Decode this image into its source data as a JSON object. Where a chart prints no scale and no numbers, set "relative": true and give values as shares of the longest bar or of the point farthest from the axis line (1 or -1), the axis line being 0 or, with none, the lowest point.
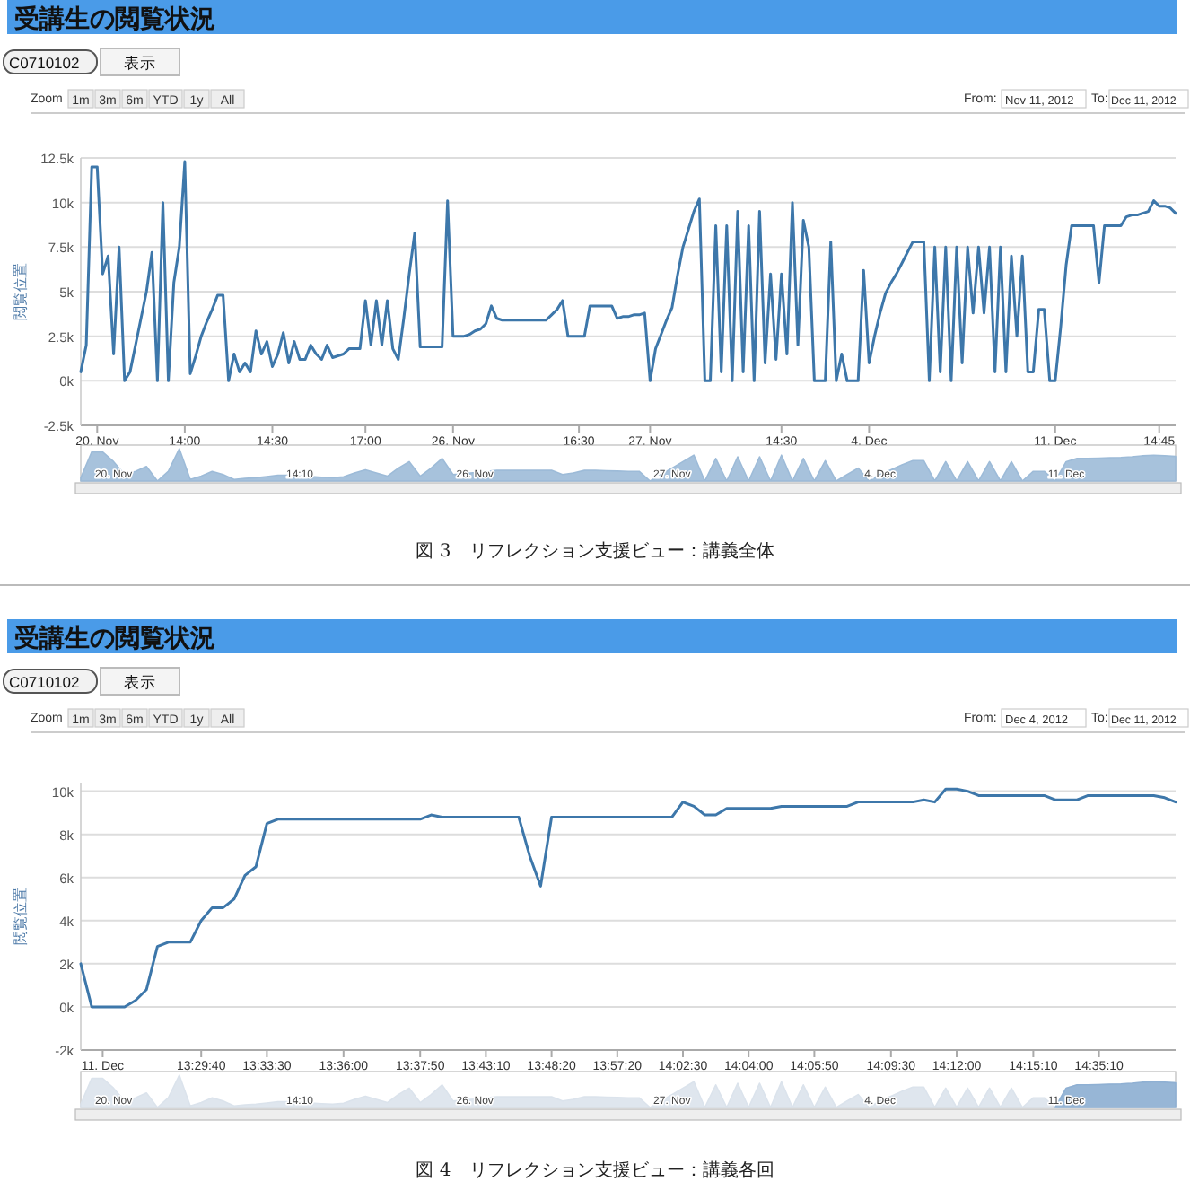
{
  "chart_data": [
    {
      "type": "line",
      "title": "受講生の閲覧状況",
      "ylabel": "閲覧位置",
      "annotations": [
        "C0710102",
        "表示",
        "Zoom",
        "1m",
        "3m",
        "6m",
        "YTD",
        "1y",
        "All",
        "From:",
        "Nov 11, 2012",
        "To:",
        "Dec 11, 2012"
      ],
      "categories": [
        null,
        null,
        null,
        "20. Nov",
        null,
        null,
        null,
        null,
        null,
        null,
        null,
        null,
        null,
        null,
        null,
        null,
        null,
        null,
        null,
        "14:00",
        null,
        null,
        null,
        null,
        null,
        null,
        null,
        null,
        null,
        null,
        null,
        null,
        null,
        null,
        null,
        "14:30",
        null,
        null,
        null,
        null,
        null,
        null,
        null,
        null,
        null,
        null,
        null,
        null,
        null,
        null,
        null,
        null,
        "17:00",
        null,
        null,
        null,
        null,
        null,
        null,
        null,
        null,
        null,
        null,
        null,
        null,
        null,
        null,
        null,
        "26. Nov",
        null,
        null,
        null,
        null,
        null,
        null,
        null,
        null,
        null,
        null,
        null,
        null,
        null,
        null,
        null,
        null,
        null,
        null,
        null,
        null,
        null,
        null,
        "16:30",
        null,
        null,
        null,
        null,
        null,
        null,
        null,
        null,
        null,
        null,
        null,
        null,
        "27. Nov",
        null,
        null,
        null,
        null,
        null,
        null,
        null,
        null,
        null,
        null,
        null,
        null,
        null,
        null,
        null,
        null,
        null,
        null,
        null,
        null,
        null,
        null,
        null,
        "14:30",
        null,
        null,
        null,
        null,
        null,
        null,
        null,
        null,
        null,
        null,
        null,
        null,
        null,
        null,
        null,
        "4. Dec",
        null,
        null,
        null,
        null,
        null,
        null,
        null,
        null,
        null,
        null,
        null,
        null,
        null,
        null,
        null,
        null,
        null,
        null,
        null,
        null,
        null,
        null,
        null,
        null,
        null,
        null,
        null,
        null,
        null,
        null,
        null,
        null,
        null,
        "11. Dec",
        null,
        null,
        null,
        null,
        null,
        null,
        null,
        null,
        null,
        null,
        null,
        null,
        null,
        null,
        null,
        null,
        null,
        null,
        "14:45",
        null,
        null,
        null
      ],
      "series": [
        {
          "color": "#3d77aa",
          "values": [
            500,
            2000,
            12000,
            12000,
            6000,
            7000,
            1500,
            7500,
            0,
            500,
            2000,
            3500,
            5000,
            7200,
            0,
            10000,
            0,
            5500,
            7500,
            12300,
            400,
            1400,
            2500,
            3300,
            4000,
            4800,
            4800,
            0,
            1500,
            500,
            1000,
            500,
            2800,
            1500,
            2200,
            800,
            1500,
            2700,
            1000,
            2200,
            1200,
            1200,
            2000,
            1500,
            1200,
            2000,
            1300,
            1400,
            1500,
            1800,
            1800,
            1800,
            4500,
            2000,
            4500,
            2000,
            4500,
            1800,
            1200,
            3500,
            6000,
            8300,
            1900,
            1900,
            1900,
            1900,
            1900,
            10100,
            2500,
            2500,
            2500,
            2600,
            2800,
            2900,
            3200,
            4200,
            3500,
            3400,
            3400,
            3400,
            3400,
            3400,
            3400,
            3400,
            3400,
            3400,
            3700,
            4000,
            4500,
            2500,
            2500,
            2500,
            2500,
            4200,
            4200,
            4200,
            4200,
            4200,
            3500,
            3600,
            3600,
            3700,
            3700,
            3800,
            0,
            1800,
            2600,
            3400,
            4100,
            5900,
            7500,
            8500,
            9500,
            10200,
            0,
            0,
            8700,
            500,
            8700,
            0,
            9500,
            500,
            8700,
            0,
            9500,
            1000,
            6000,
            1200,
            6000,
            1500,
            10000,
            2000,
            9000,
            7500,
            0,
            0,
            0,
            7800,
            0,
            1500,
            0,
            0,
            0,
            6200,
            1000,
            2500,
            3800,
            4900,
            5500,
            6000,
            6600,
            7200,
            7800,
            7800,
            7800,
            0,
            7500,
            500,
            7500,
            0,
            7500,
            1000,
            7500,
            3800,
            7500,
            3800,
            7500,
            500,
            7500,
            500,
            7000,
            2500,
            7000,
            500,
            500,
            4000,
            4000,
            0,
            0,
            3000,
            6500,
            8700,
            8700,
            8700,
            8700,
            8700,
            5500,
            8700,
            8700,
            8700,
            8700,
            9200,
            9300,
            9300,
            9400,
            9500,
            10100,
            9800,
            9800,
            9700,
            9400
          ]
        }
      ],
      "ylim": [
        -2500,
        12500
      ],
      "yticks": [
        {
          "value": -2500,
          "label": "-2.5k"
        },
        {
          "value": 0,
          "label": "0k"
        },
        {
          "value": 2500,
          "label": "2.5k"
        },
        {
          "value": 5000,
          "label": "5k"
        },
        {
          "value": 7500,
          "label": "7.5k"
        },
        {
          "value": 10000,
          "label": "10k"
        },
        {
          "value": 12500,
          "label": "12.5k"
        }
      ],
      "grid": "y"
    },
    {
      "type": "area",
      "relative": true,
      "annotations": [
        "図 3　リフレクション支援ビュー：講義全体"
      ],
      "categories": [
        null,
        null,
        null,
        "20. Nov",
        null,
        null,
        null,
        null,
        null,
        null,
        null,
        null,
        null,
        null,
        null,
        null,
        null,
        null,
        null,
        null,
        "14:10",
        null,
        null,
        null,
        null,
        null,
        null,
        null,
        null,
        null,
        null,
        null,
        null,
        null,
        null,
        null,
        "26. Nov",
        null,
        null,
        null,
        null,
        null,
        null,
        null,
        null,
        null,
        null,
        null,
        null,
        null,
        null,
        null,
        null,
        null,
        "27. Nov",
        null,
        null,
        null,
        null,
        null,
        null,
        null,
        null,
        null,
        null,
        null,
        null,
        null,
        null,
        null,
        null,
        null,
        null,
        "4. Dec",
        null,
        null,
        null,
        null,
        null,
        null,
        null,
        null,
        null,
        null,
        null,
        null,
        null,
        null,
        null,
        null,
        "11. Dec",
        null,
        null,
        null,
        null,
        null,
        null,
        null,
        null,
        null,
        null
      ],
      "series": [
        {
          "color": "#9dbbd8",
          "values": [
            0.1,
            0.9,
            0.9,
            0.6,
            0.2,
            0.3,
            0.45,
            0,
            0.3,
            1,
            0.05,
            0.15,
            0.3,
            0.2,
            0.05,
            0.08,
            0.1,
            0.14,
            0.18,
            0.18,
            0.16,
            0.14,
            0.12,
            0.1,
            0.13,
            0.25,
            0.35,
            0.25,
            0.15,
            0.4,
            0.6,
            0.15,
            0.4,
            0.7,
            0.2,
            0.23,
            0.26,
            0.3,
            0.33,
            0.33,
            0.33,
            0.33,
            0.33,
            0.33,
            0.2,
            0.25,
            0.33,
            0.33,
            0.32,
            0.31,
            0.3,
            0.3,
            0,
            0.2,
            0.4,
            0.6,
            0.8,
            0,
            0.7,
            0,
            0.75,
            0,
            0.75,
            0,
            0.8,
            0,
            0.7,
            0,
            0.63,
            0,
            0.2,
            0.4,
            0,
            0.2,
            0.35,
            0.5,
            0.63,
            0.63,
            0,
            0.6,
            0,
            0.6,
            0,
            0.6,
            0,
            0.6,
            0,
            0.3,
            0.3,
            0,
            0.6,
            0.7,
            0.7,
            0.71,
            0.72,
            0.73,
            0.75,
            0.78,
            0.8,
            0.78,
            0.76
          ]
        }
      ]
    },
    {
      "type": "line",
      "title": "受講生の閲覧状況",
      "ylabel": "閲覧位置",
      "annotations": [
        "C0710102",
        "表示",
        "Zoom",
        "1m",
        "3m",
        "6m",
        "YTD",
        "1y",
        "All",
        "From:",
        "Dec 4, 2012",
        "To:",
        "Dec 11, 2012"
      ],
      "categories": [
        null,
        null,
        "11. Dec",
        null,
        null,
        null,
        null,
        null,
        null,
        null,
        null,
        "13:29:40",
        null,
        null,
        null,
        null,
        null,
        "13:33:30",
        null,
        null,
        null,
        null,
        null,
        null,
        "13:36:00",
        null,
        null,
        null,
        null,
        null,
        null,
        "13:37:50",
        null,
        null,
        null,
        null,
        null,
        "13:43:10",
        null,
        null,
        null,
        null,
        null,
        "13:48:20",
        null,
        null,
        null,
        null,
        null,
        "13:57:20",
        null,
        null,
        null,
        null,
        null,
        "14:02:30",
        null,
        null,
        null,
        null,
        null,
        "14:04:00",
        null,
        null,
        null,
        null,
        null,
        "14:05:50",
        null,
        null,
        null,
        null,
        null,
        null,
        "14:09:30",
        null,
        null,
        null,
        null,
        null,
        "14:12:00",
        null,
        null,
        null,
        null,
        null,
        null,
        "14:15:10",
        null,
        null,
        null,
        null,
        null,
        "14:35:10",
        null,
        null,
        null,
        null,
        null,
        null,
        null
      ],
      "series": [
        {
          "color": "#3d77aa",
          "values": [
            2000,
            0,
            0,
            0,
            0,
            300,
            800,
            2800,
            3000,
            3000,
            3000,
            4000,
            4600,
            4600,
            5000,
            6100,
            6500,
            8500,
            8700,
            8700,
            8700,
            8700,
            8700,
            8700,
            8700,
            8700,
            8700,
            8700,
            8700,
            8700,
            8700,
            8700,
            8900,
            8800,
            8800,
            8800,
            8800,
            8800,
            8800,
            8800,
            8800,
            7000,
            5600,
            8800,
            8800,
            8800,
            8800,
            8800,
            8800,
            8800,
            8800,
            8800,
            8800,
            8800,
            8800,
            9500,
            9300,
            8900,
            8900,
            9200,
            9200,
            9200,
            9200,
            9200,
            9300,
            9300,
            9300,
            9300,
            9300,
            9300,
            9300,
            9500,
            9500,
            9500,
            9500,
            9500,
            9500,
            9600,
            9500,
            10100,
            10100,
            10000,
            9800,
            9800,
            9800,
            9800,
            9800,
            9800,
            9800,
            9600,
            9600,
            9600,
            9800,
            9800,
            9800,
            9800,
            9800,
            9800,
            9800,
            9700,
            9500
          ]
        }
      ],
      "ylim": [
        -2000,
        10400
      ],
      "yticks": [
        {
          "value": -2000,
          "label": "-2k"
        },
        {
          "value": 0,
          "label": "0k"
        },
        {
          "value": 2000,
          "label": "2k"
        },
        {
          "value": 4000,
          "label": "4k"
        },
        {
          "value": 6000,
          "label": "6k"
        },
        {
          "value": 8000,
          "label": "8k"
        },
        {
          "value": 10000,
          "label": "10k"
        }
      ],
      "grid": "y"
    },
    {
      "type": "area",
      "relative": true,
      "annotations": [
        "図 4　リフレクション支援ビュー：講義各回"
      ],
      "categories": [
        null,
        null,
        null,
        "20. Nov",
        null,
        null,
        null,
        null,
        null,
        null,
        null,
        null,
        null,
        null,
        null,
        null,
        null,
        null,
        null,
        null,
        "14:10",
        null,
        null,
        null,
        null,
        null,
        null,
        null,
        null,
        null,
        null,
        null,
        null,
        null,
        null,
        null,
        "26. Nov",
        null,
        null,
        null,
        null,
        null,
        null,
        null,
        null,
        null,
        null,
        null,
        null,
        null,
        null,
        null,
        null,
        null,
        "27. Nov",
        null,
        null,
        null,
        null,
        null,
        null,
        null,
        null,
        null,
        null,
        null,
        null,
        null,
        null,
        null,
        null,
        null,
        null,
        "4. Dec",
        null,
        null,
        null,
        null,
        null,
        null,
        null,
        null,
        null,
        null,
        null,
        null,
        null,
        null,
        null,
        null,
        "11. Dec",
        null,
        null,
        null,
        null,
        null,
        null,
        null,
        null,
        null,
        null
      ],
      "series": [
        {
          "color": "#dbe3ec",
          "values": [
            0.1,
            0.9,
            0.9,
            0.6,
            0.2,
            0.3,
            0.45,
            0,
            0.3,
            1,
            0.05,
            0.15,
            0.3,
            0.2,
            0.05,
            0.08,
            0.1,
            0.14,
            0.18,
            0.18,
            0.16,
            0.14,
            0.12,
            0.1,
            0.13,
            0.25,
            0.35,
            0.25,
            0.15,
            0.4,
            0.6,
            0.15,
            0.4,
            0.7,
            0.2,
            0.23,
            0.26,
            0.3,
            0.33,
            0.33,
            0.33,
            0.33,
            0.33,
            0.33,
            0.2,
            0.25,
            0.33,
            0.33,
            0.32,
            0.31,
            0.3,
            0.3,
            0,
            0.2,
            0.4,
            0.6,
            0.8,
            0,
            0.7,
            0,
            0.75,
            0,
            0.75,
            0,
            0.8,
            0,
            0.7,
            0,
            0.63,
            0,
            0.2,
            0.4,
            0,
            0.2,
            0.35,
            0.5,
            0.63,
            0.63,
            0,
            0.6,
            0,
            0.6,
            0,
            0.6,
            0,
            0.6,
            0,
            0.3,
            0.3,
            0,
            0.6,
            0.7,
            0.7,
            0.71,
            0.72,
            0.73,
            0.75,
            0.78,
            0.8,
            0.78,
            0.76
          ]
        },
        {
          "color": "#8fb0d3",
          "values": [
            null,
            null,
            null,
            null,
            null,
            null,
            null,
            null,
            null,
            null,
            null,
            null,
            null,
            null,
            null,
            null,
            null,
            null,
            null,
            null,
            null,
            null,
            null,
            null,
            null,
            null,
            null,
            null,
            null,
            null,
            null,
            null,
            null,
            null,
            null,
            null,
            null,
            null,
            null,
            null,
            null,
            null,
            null,
            null,
            null,
            null,
            null,
            null,
            null,
            null,
            null,
            null,
            null,
            null,
            null,
            null,
            null,
            null,
            null,
            null,
            null,
            null,
            null,
            null,
            null,
            null,
            null,
            null,
            null,
            null,
            null,
            null,
            null,
            null,
            null,
            null,
            null,
            null,
            null,
            null,
            null,
            null,
            null,
            null,
            null,
            null,
            null,
            null,
            null,
            0,
            0.6,
            0.7,
            0.7,
            0.71,
            0.72,
            0.73,
            0.75,
            0.78,
            0.8,
            0.78,
            0.76
          ]
        }
      ]
    }
  ]
}
